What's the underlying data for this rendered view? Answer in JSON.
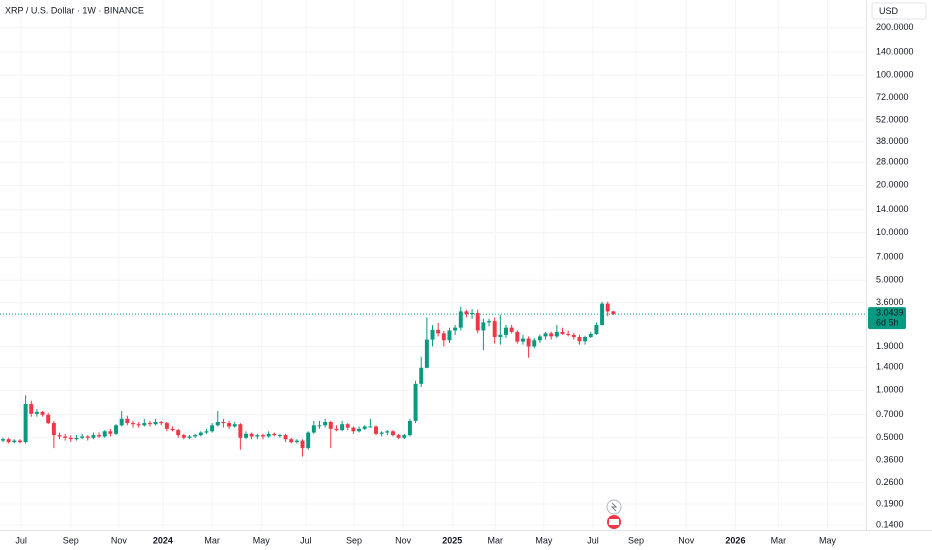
{
  "chart_data": {
    "type": "candlestick",
    "title": "XRP / U.S. Dollar · 1W · BINANCE",
    "currency": "USD",
    "countdown": "6d 5h",
    "log_scale": true,
    "grid": true,
    "up_color": "#089981",
    "down_color": "#f23645",
    "ylim": [
      0.13,
      300
    ],
    "yticks": [
      {
        "value": 200,
        "label": "200.0000"
      },
      {
        "value": 140,
        "label": "140.0000"
      },
      {
        "value": 100,
        "label": "100.0000"
      },
      {
        "value": 72,
        "label": "72.0000"
      },
      {
        "value": 52,
        "label": "52.0000"
      },
      {
        "value": 38,
        "label": "38.0000"
      },
      {
        "value": 28,
        "label": "28.0000"
      },
      {
        "value": 20,
        "label": "20.0000"
      },
      {
        "value": 14,
        "label": "14.0000"
      },
      {
        "value": 10,
        "label": "10.0000"
      },
      {
        "value": 7,
        "label": "7.0000"
      },
      {
        "value": 5,
        "label": "5.0000"
      },
      {
        "value": 3.6,
        "label": "3.6000"
      },
      {
        "value": 1.9,
        "label": "1.9000"
      },
      {
        "value": 1.4,
        "label": "1.4000"
      },
      {
        "value": 1,
        "label": "1.0000"
      },
      {
        "value": 0.7,
        "label": "0.7000"
      },
      {
        "value": 0.5,
        "label": "0.5000"
      },
      {
        "value": 0.36,
        "label": "0.3600"
      },
      {
        "value": 0.26,
        "label": "0.2600"
      },
      {
        "value": 0.19,
        "label": "0.1900"
      },
      {
        "value": 0.14,
        "label": "0.1400"
      }
    ],
    "xlim": [
      -0.53,
      152.7
    ],
    "xticks": [
      {
        "value": 3.2,
        "label": "Jul"
      },
      {
        "value": 12.0,
        "label": "Sep"
      },
      {
        "value": 20.5,
        "label": "Nov"
      },
      {
        "value": 28.3,
        "label": "2024"
      },
      {
        "value": 37.0,
        "label": "Mar"
      },
      {
        "value": 45.7,
        "label": "May"
      },
      {
        "value": 53.6,
        "label": "Jul"
      },
      {
        "value": 62.1,
        "label": "Sep"
      },
      {
        "value": 70.8,
        "label": "Nov"
      },
      {
        "value": 79.5,
        "label": "2025"
      },
      {
        "value": 87.1,
        "label": "Mar"
      },
      {
        "value": 95.7,
        "label": "May"
      },
      {
        "value": 104.4,
        "label": "Jul"
      },
      {
        "value": 112.0,
        "label": "Sep"
      },
      {
        "value": 120.9,
        "label": "Nov"
      },
      {
        "value": 129.6,
        "label": "2026"
      },
      {
        "value": 137.2,
        "label": "Mar"
      },
      {
        "value": 145.9,
        "label": "May"
      }
    ],
    "ohlc": [
      [
        0.48,
        0.5,
        0.47,
        0.49
      ],
      [
        0.49,
        0.5,
        0.46,
        0.47
      ],
      [
        0.47,
        0.49,
        0.46,
        0.48
      ],
      [
        0.48,
        0.49,
        0.46,
        0.47
      ],
      [
        0.47,
        0.93,
        0.46,
        0.82
      ],
      [
        0.82,
        0.86,
        0.68,
        0.71
      ],
      [
        0.71,
        0.76,
        0.68,
        0.73
      ],
      [
        0.73,
        0.74,
        0.68,
        0.7
      ],
      [
        0.7,
        0.72,
        0.61,
        0.62
      ],
      [
        0.62,
        0.64,
        0.43,
        0.52
      ],
      [
        0.52,
        0.54,
        0.49,
        0.51
      ],
      [
        0.51,
        0.53,
        0.48,
        0.5
      ],
      [
        0.5,
        0.52,
        0.47,
        0.49
      ],
      [
        0.49,
        0.52,
        0.48,
        0.5
      ],
      [
        0.5,
        0.53,
        0.49,
        0.51
      ],
      [
        0.51,
        0.52,
        0.48,
        0.5
      ],
      [
        0.5,
        0.54,
        0.49,
        0.52
      ],
      [
        0.52,
        0.54,
        0.5,
        0.51
      ],
      [
        0.51,
        0.56,
        0.5,
        0.55
      ],
      [
        0.55,
        0.57,
        0.51,
        0.53
      ],
      [
        0.53,
        0.61,
        0.52,
        0.6
      ],
      [
        0.6,
        0.74,
        0.59,
        0.66
      ],
      [
        0.66,
        0.69,
        0.6,
        0.62
      ],
      [
        0.62,
        0.64,
        0.58,
        0.61
      ],
      [
        0.61,
        0.63,
        0.58,
        0.6
      ],
      [
        0.6,
        0.66,
        0.59,
        0.62
      ],
      [
        0.62,
        0.64,
        0.59,
        0.61
      ],
      [
        0.61,
        0.66,
        0.6,
        0.63
      ],
      [
        0.63,
        0.64,
        0.6,
        0.62
      ],
      [
        0.62,
        0.63,
        0.55,
        0.57
      ],
      [
        0.57,
        0.59,
        0.55,
        0.56
      ],
      [
        0.56,
        0.57,
        0.5,
        0.52
      ],
      [
        0.52,
        0.53,
        0.49,
        0.5
      ],
      [
        0.5,
        0.52,
        0.49,
        0.51
      ],
      [
        0.51,
        0.53,
        0.5,
        0.52
      ],
      [
        0.52,
        0.55,
        0.51,
        0.54
      ],
      [
        0.54,
        0.57,
        0.53,
        0.55
      ],
      [
        0.55,
        0.62,
        0.54,
        0.6
      ],
      [
        0.6,
        0.74,
        0.59,
        0.63
      ],
      [
        0.63,
        0.66,
        0.58,
        0.62
      ],
      [
        0.62,
        0.64,
        0.57,
        0.59
      ],
      [
        0.59,
        0.63,
        0.58,
        0.61
      ],
      [
        0.61,
        0.62,
        0.42,
        0.5
      ],
      [
        0.5,
        0.55,
        0.49,
        0.53
      ],
      [
        0.53,
        0.54,
        0.49,
        0.51
      ],
      [
        0.51,
        0.53,
        0.49,
        0.52
      ],
      [
        0.52,
        0.53,
        0.49,
        0.51
      ],
      [
        0.51,
        0.55,
        0.5,
        0.53
      ],
      [
        0.53,
        0.54,
        0.51,
        0.52
      ],
      [
        0.52,
        0.53,
        0.5,
        0.52
      ],
      [
        0.52,
        0.53,
        0.47,
        0.49
      ],
      [
        0.49,
        0.5,
        0.46,
        0.47
      ],
      [
        0.47,
        0.49,
        0.46,
        0.48
      ],
      [
        0.48,
        0.49,
        0.38,
        0.43
      ],
      [
        0.43,
        0.55,
        0.42,
        0.54
      ],
      [
        0.54,
        0.64,
        0.53,
        0.6
      ],
      [
        0.6,
        0.64,
        0.57,
        0.6
      ],
      [
        0.6,
        0.66,
        0.58,
        0.63
      ],
      [
        0.63,
        0.64,
        0.43,
        0.57
      ],
      [
        0.57,
        0.6,
        0.55,
        0.56
      ],
      [
        0.56,
        0.64,
        0.55,
        0.61
      ],
      [
        0.61,
        0.62,
        0.56,
        0.58
      ],
      [
        0.58,
        0.59,
        0.53,
        0.55
      ],
      [
        0.55,
        0.59,
        0.54,
        0.57
      ],
      [
        0.57,
        0.6,
        0.56,
        0.59
      ],
      [
        0.59,
        0.66,
        0.58,
        0.59
      ],
      [
        0.59,
        0.6,
        0.52,
        0.53
      ],
      [
        0.53,
        0.55,
        0.51,
        0.54
      ],
      [
        0.54,
        0.56,
        0.52,
        0.55
      ],
      [
        0.55,
        0.56,
        0.51,
        0.52
      ],
      [
        0.52,
        0.53,
        0.49,
        0.5
      ],
      [
        0.5,
        0.53,
        0.49,
        0.52
      ],
      [
        0.52,
        0.66,
        0.51,
        0.64
      ],
      [
        0.64,
        1.15,
        0.62,
        1.1
      ],
      [
        1.1,
        1.63,
        1.05,
        1.39
      ],
      [
        1.39,
        2.9,
        1.38,
        2.1
      ],
      [
        2.1,
        2.6,
        1.9,
        2.42
      ],
      [
        2.42,
        2.68,
        2.2,
        2.3
      ],
      [
        2.3,
        2.38,
        1.9,
        2.08
      ],
      [
        2.08,
        2.5,
        2.0,
        2.4
      ],
      [
        2.4,
        2.6,
        2.25,
        2.5
      ],
      [
        2.5,
        3.4,
        2.4,
        3.17
      ],
      [
        3.17,
        3.25,
        2.9,
        3.05
      ],
      [
        3.05,
        3.28,
        2.85,
        3.1
      ],
      [
        3.1,
        3.25,
        2.3,
        2.4
      ],
      [
        2.4,
        2.85,
        1.8,
        2.7
      ],
      [
        2.7,
        2.85,
        2.55,
        2.75
      ],
      [
        2.75,
        2.9,
        1.98,
        2.18
      ],
      [
        2.18,
        3.0,
        1.95,
        2.25
      ],
      [
        2.25,
        2.6,
        2.15,
        2.5
      ],
      [
        2.5,
        2.6,
        2.3,
        2.35
      ],
      [
        2.35,
        2.4,
        1.98,
        2.04
      ],
      [
        2.04,
        2.25,
        1.95,
        2.13
      ],
      [
        2.13,
        2.2,
        1.61,
        1.9
      ],
      [
        1.9,
        2.15,
        1.85,
        2.08
      ],
      [
        2.08,
        2.26,
        2.0,
        2.2
      ],
      [
        2.2,
        2.35,
        2.1,
        2.3
      ],
      [
        2.3,
        2.36,
        2.1,
        2.2
      ],
      [
        2.2,
        2.6,
        2.15,
        2.35
      ],
      [
        2.35,
        2.5,
        2.25,
        2.28
      ],
      [
        2.28,
        2.4,
        2.2,
        2.25
      ],
      [
        2.25,
        2.32,
        2.1,
        2.18
      ],
      [
        2.18,
        2.25,
        1.95,
        2.05
      ],
      [
        2.05,
        2.22,
        1.95,
        2.18
      ],
      [
        2.18,
        2.35,
        2.15,
        2.28
      ],
      [
        2.28,
        2.7,
        2.25,
        2.6
      ],
      [
        2.6,
        3.65,
        2.58,
        3.55
      ],
      [
        3.55,
        3.66,
        2.95,
        3.17
      ],
      [
        3.17,
        3.2,
        3.0,
        3.0439
      ]
    ]
  }
}
